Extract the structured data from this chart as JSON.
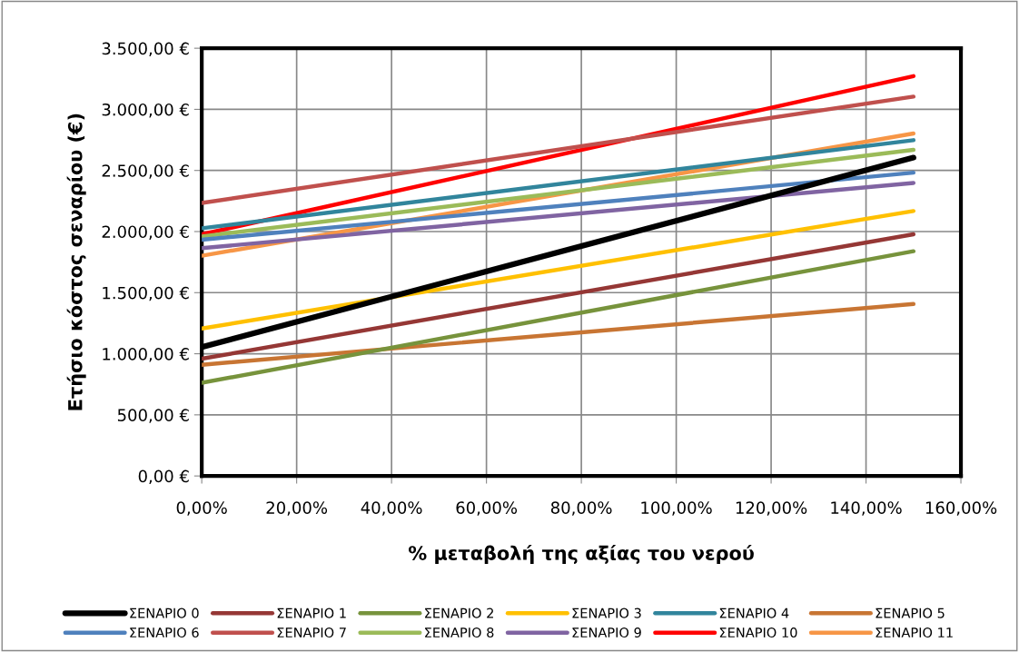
{
  "chart_data": {
    "type": "line",
    "xlabel": "% μεταβολή της αξίας του νερού",
    "ylabel": "Ετήσιο κόστος σεναρίου (€)",
    "x": [
      0,
      150
    ],
    "series": [
      {
        "name": "ΣΕΝΑΡΙΟ 0",
        "color": "#000000",
        "values": [
          1054,
          2605
        ]
      },
      {
        "name": "ΣΕΝΑΡΙΟ 1",
        "color": "#953735",
        "values": [
          959,
          1978
        ]
      },
      {
        "name": "ΣΕΝΑΡΙΟ 2",
        "color": "#77933c",
        "values": [
          762,
          1839
        ]
      },
      {
        "name": "ΣΕΝΑΡΙΟ 3",
        "color": "#ffc000",
        "values": [
          1206,
          2168
        ]
      },
      {
        "name": "ΣΕΝΑΡΙΟ 4",
        "color": "#31859c",
        "values": [
          2027,
          2748
        ]
      },
      {
        "name": "ΣΕΝΑΡΙΟ 5",
        "color": "#c87533",
        "values": [
          910,
          1407
        ]
      },
      {
        "name": "ΣΕΝΑΡΙΟ 6",
        "color": "#4f81bd",
        "values": [
          1933,
          2482
        ]
      },
      {
        "name": "ΣΕΝΑΡΙΟ 7",
        "color": "#c0504d",
        "values": [
          2234,
          3104
        ]
      },
      {
        "name": "ΣΕΝΑΡΙΟ 8",
        "color": "#9bbb59",
        "values": [
          1960,
          2669
        ]
      },
      {
        "name": "ΣΕΝΑΡΙΟ 9",
        "color": "#8064a2",
        "values": [
          1864,
          2398
        ]
      },
      {
        "name": "ΣΕΝΑΡΙΟ 10",
        "color": "#ff0000",
        "values": [
          1978,
          3272
        ]
      },
      {
        "name": "ΣΕΝΑΡΙΟ 11",
        "color": "#f79646",
        "values": [
          1802,
          2802
        ]
      }
    ],
    "xlim": [
      0,
      160
    ],
    "xticks": [
      {
        "value": 0,
        "label": "0,00%"
      },
      {
        "value": 20,
        "label": "20,00%"
      },
      {
        "value": 40,
        "label": "40,00%"
      },
      {
        "value": 60,
        "label": "60,00%"
      },
      {
        "value": 80,
        "label": "80,00%"
      },
      {
        "value": 100,
        "label": "100,00%"
      },
      {
        "value": 120,
        "label": "120,00%"
      },
      {
        "value": 140,
        "label": "140,00%"
      },
      {
        "value": 160,
        "label": "160,00%"
      }
    ],
    "ylim": [
      0,
      3500
    ],
    "yticks": [
      {
        "value": 0,
        "label": "0,00 €"
      },
      {
        "value": 500,
        "label": "500,00 €"
      },
      {
        "value": 1000,
        "label": "1.000,00 €"
      },
      {
        "value": 1500,
        "label": "1.500,00 €"
      },
      {
        "value": 2000,
        "label": "2.000,00 €"
      },
      {
        "value": 2500,
        "label": "2.500,00 €"
      },
      {
        "value": 3000,
        "label": "3.000,00 €"
      },
      {
        "value": 3500,
        "label": "3.500,00 €"
      }
    ],
    "grid": true,
    "legend": "bottom",
    "marker": "none",
    "line_style": "solid"
  }
}
